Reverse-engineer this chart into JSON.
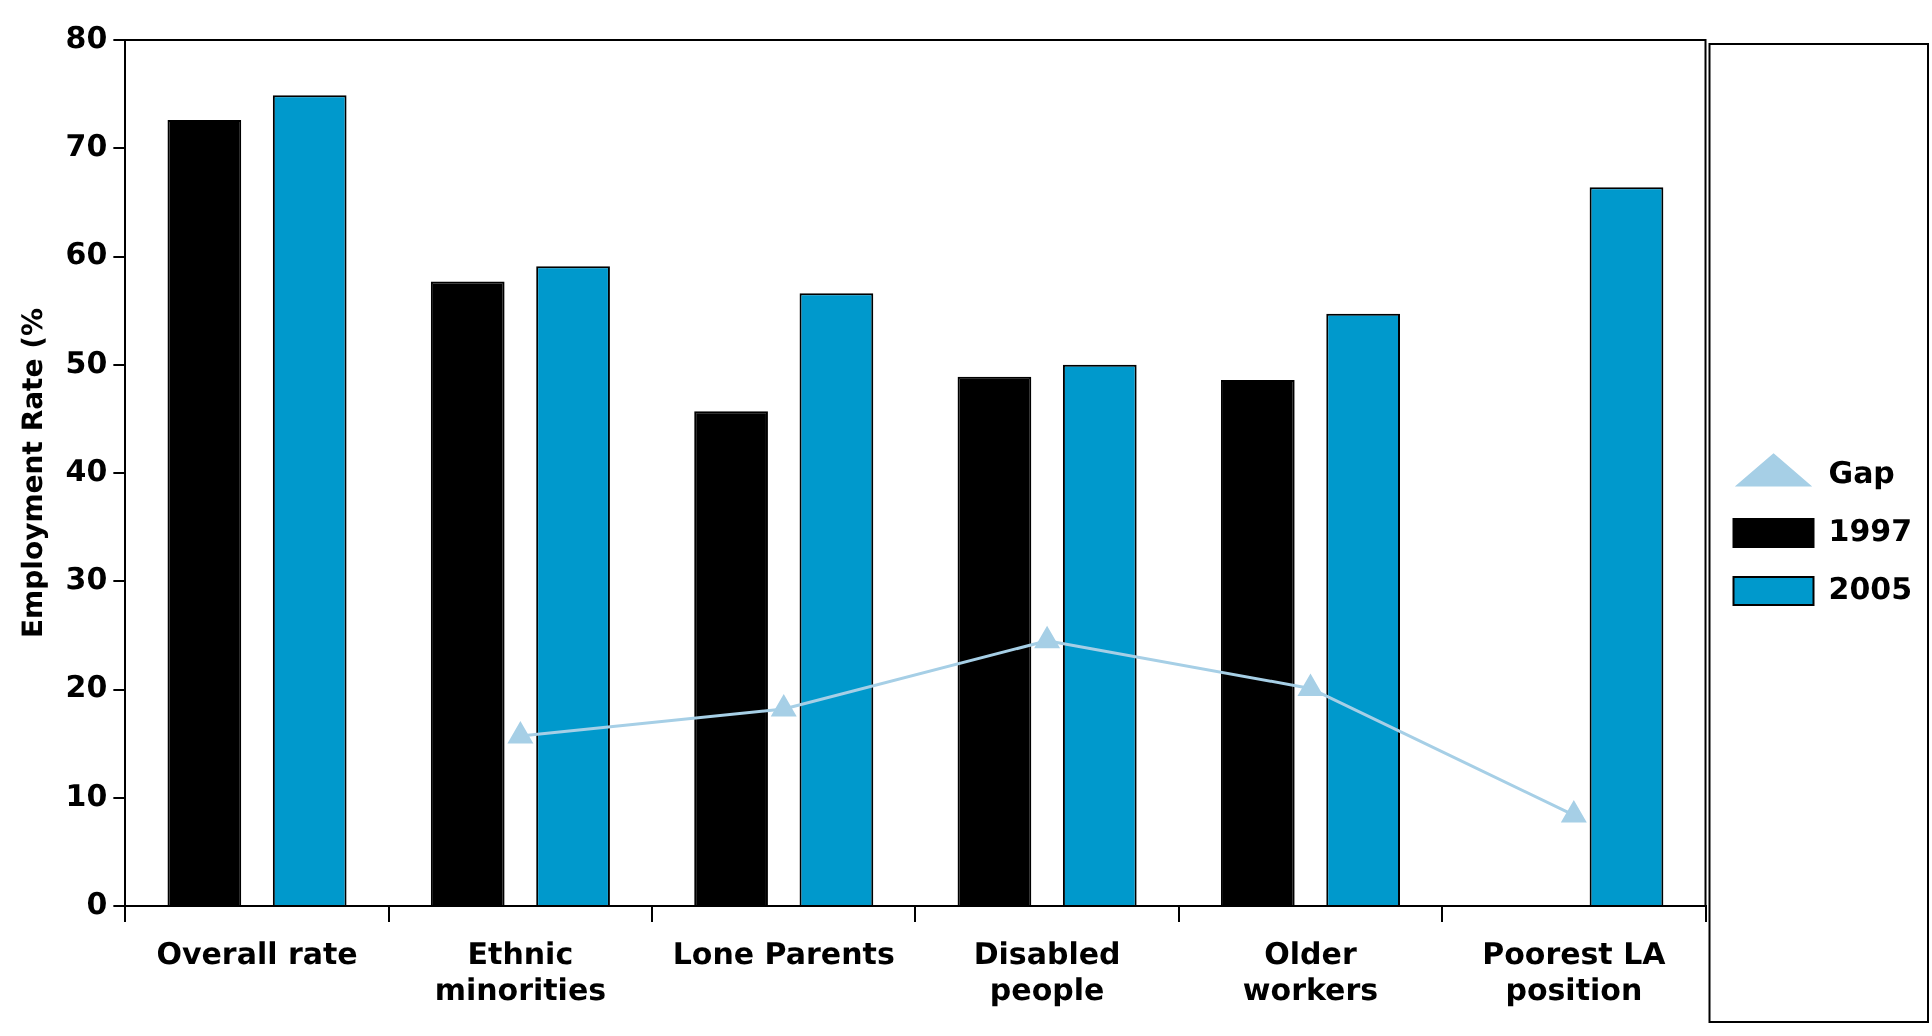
{
  "chart_data": {
    "type": "bar",
    "ylabel": "Employment Rate (%",
    "categories": [
      "Overall rate",
      "Ethnic minorities",
      "Lone Parents",
      "Disabled people",
      "Older workers",
      "Poorest LA position"
    ],
    "series": [
      {
        "name": "1997",
        "color": "#000000",
        "values": [
          72.6,
          57.7,
          45.7,
          48.9,
          48.6,
          null
        ]
      },
      {
        "name": "2005",
        "color": "#0099cc",
        "values": [
          74.9,
          59.1,
          56.6,
          50.0,
          54.7,
          66.4
        ]
      },
      {
        "name": "Gap",
        "type": "line",
        "color": "#a6cfe6",
        "marker": "triangle",
        "values": [
          null,
          15.7,
          18.2,
          24.5,
          20.1,
          8.4
        ]
      }
    ],
    "ylim": [
      0,
      80
    ],
    "yticks": [
      0,
      10,
      20,
      30,
      40,
      50,
      60,
      70,
      80
    ],
    "grid": false,
    "legend": "right"
  }
}
